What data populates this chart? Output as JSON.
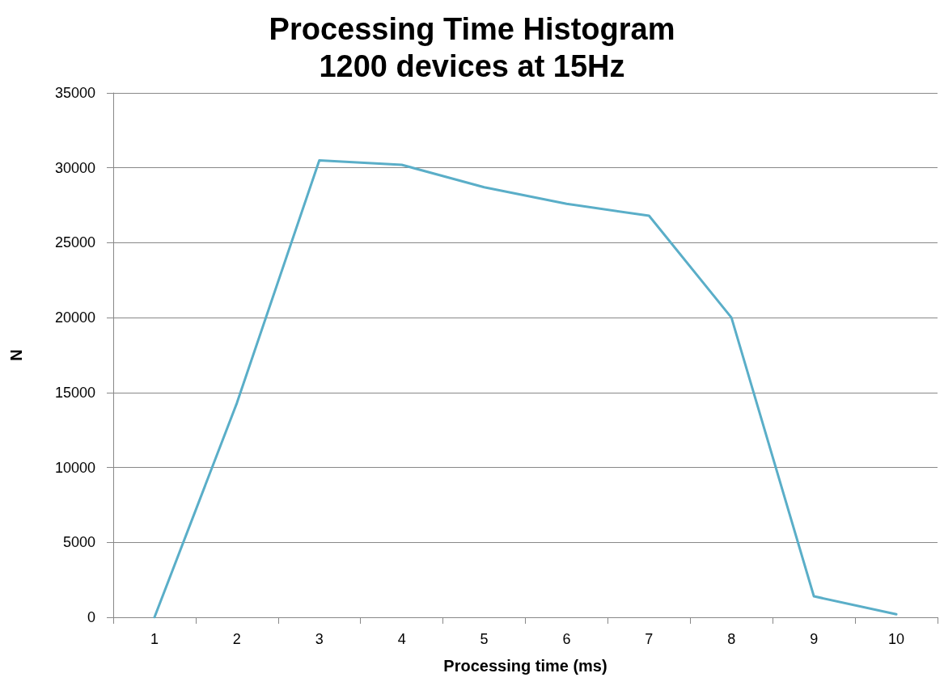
{
  "chart_data": {
    "type": "line",
    "title": "Processing Time Histogram\n1200 devices at 15Hz",
    "xlabel": "Processing time (ms)",
    "ylabel": "N",
    "categories": [
      "1",
      "2",
      "3",
      "4",
      "5",
      "6",
      "7",
      "8",
      "9",
      "10"
    ],
    "series": [
      {
        "color": "#5aaec8",
        "values": [
          0,
          14300,
          30500,
          30200,
          28700,
          27600,
          26800,
          20000,
          1400,
          200
        ]
      }
    ],
    "ylim": [
      0,
      35000
    ],
    "yticks": [
      0,
      5000,
      10000,
      15000,
      20000,
      25000,
      30000,
      35000
    ],
    "grid": "y",
    "marker": "none"
  }
}
